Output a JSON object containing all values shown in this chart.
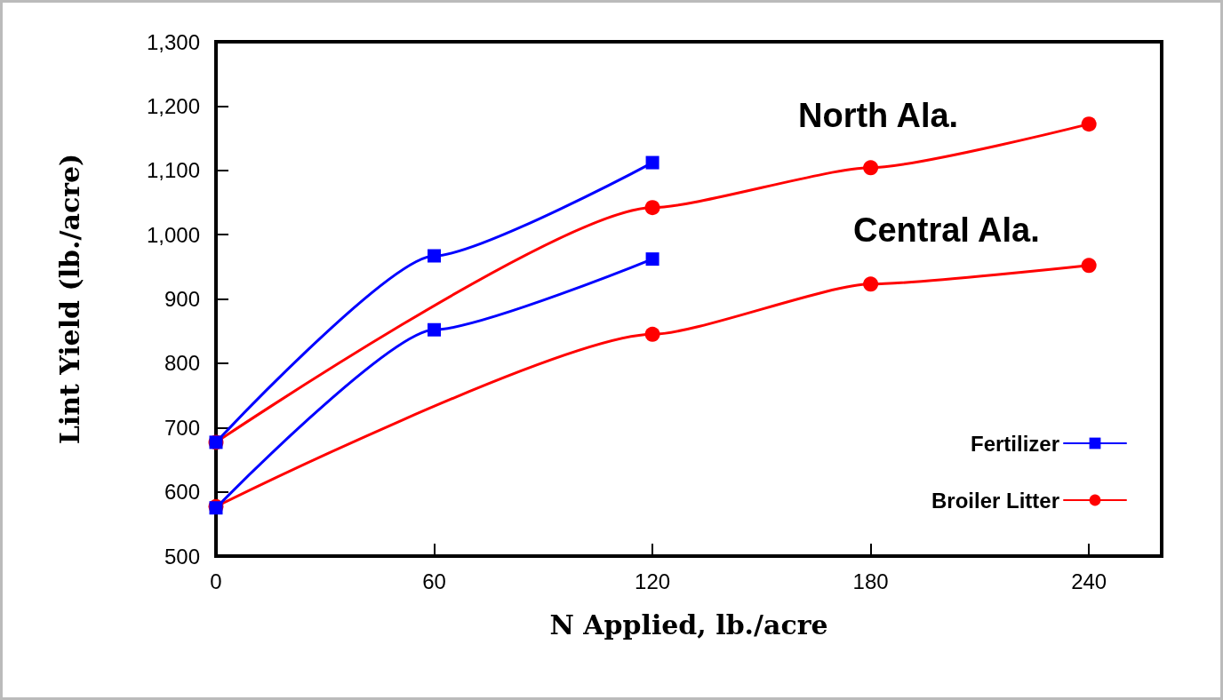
{
  "chart_data": {
    "type": "line",
    "xlabel": "N Applied, lb./acre",
    "ylabel": "Lint Yield (lb./acre)",
    "xlim": [
      0,
      260
    ],
    "xticks": [
      0,
      60,
      120,
      180,
      240
    ],
    "ylim": [
      500,
      1300
    ],
    "yticks": [
      500,
      600,
      700,
      800,
      900,
      {
        "value": 1000,
        "label": "1,000"
      },
      {
        "value": 1100,
        "label": "1,100"
      },
      {
        "value": 1200,
        "label": "1,200"
      },
      {
        "value": 1300,
        "label": "1,300"
      }
    ],
    "series": [
      {
        "name": "Fertilizer",
        "color": "#0000ff",
        "marker": "square",
        "x": [
          0,
          60,
          120
        ],
        "values": [
          677,
          967,
          1112
        ]
      },
      {
        "color": "#0000ff",
        "marker": "square",
        "x": [
          0,
          60,
          120
        ],
        "values": [
          575,
          852,
          962
        ]
      },
      {
        "name": "Broiler Litter",
        "color": "#ff0000",
        "marker": "circle",
        "x": [
          0,
          120,
          180,
          240
        ],
        "values": [
          677,
          1042,
          1104,
          1172
        ]
      },
      {
        "color": "#ff0000",
        "marker": "circle",
        "x": [
          0,
          120,
          180,
          240
        ],
        "values": [
          577,
          845,
          923,
          952
        ]
      }
    ],
    "annotations": [
      "North Ala.",
      "Central Ala."
    ],
    "legend": "bottom right",
    "grid": false
  }
}
